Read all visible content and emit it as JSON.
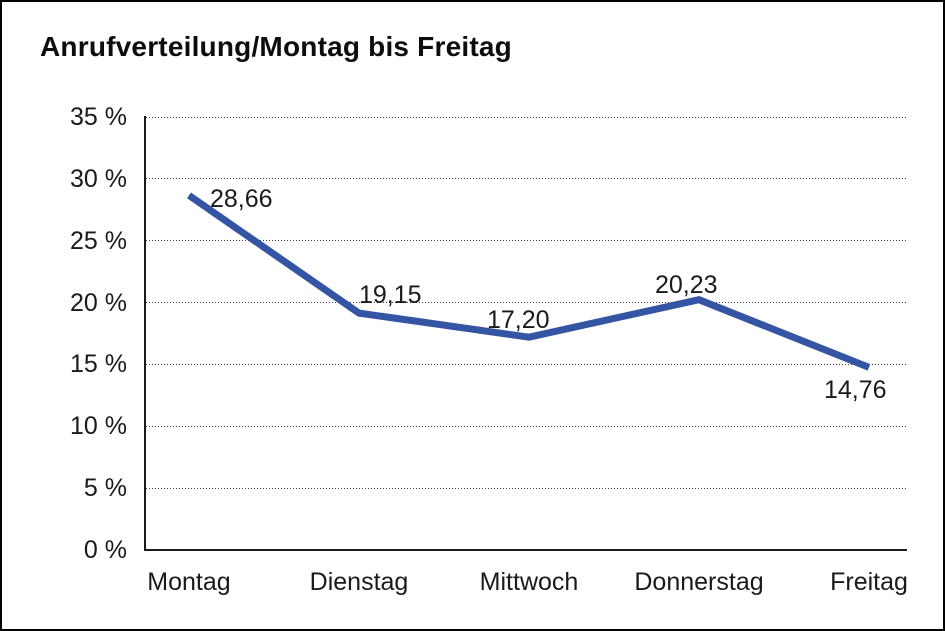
{
  "title": "Anrufverteilung/Montag bis Freitag",
  "chart_data": {
    "type": "line",
    "title": "Anrufverteilung/Montag bis Freitag",
    "categories": [
      "Montag",
      "Dienstag",
      "Mittwoch",
      "Donnerstag",
      "Freitag"
    ],
    "values": [
      28.66,
      19.15,
      17.2,
      20.23,
      14.76
    ],
    "point_labels": [
      "28,66",
      "19,15",
      "17,20",
      "20,23",
      "14,76"
    ],
    "xlabel": "",
    "ylabel": "",
    "ylim": [
      0,
      35
    ],
    "y_ticks": [
      0,
      5,
      10,
      15,
      20,
      25,
      30,
      35
    ],
    "y_tick_labels": [
      "0 %",
      "5 %",
      "10 %",
      "15 %",
      "20 %",
      "25 %",
      "30 %",
      "35 %"
    ],
    "grid": "horizontal-dotted",
    "legend": "none",
    "line_color": "#3454A4"
  }
}
